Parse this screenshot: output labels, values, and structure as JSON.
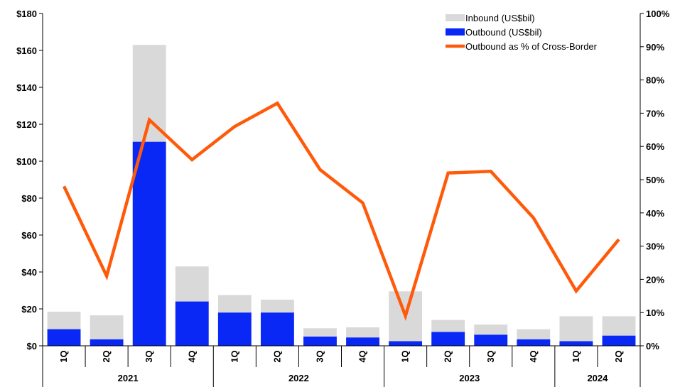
{
  "chart_data": {
    "type": "bar",
    "categories": [
      "1Q",
      "2Q",
      "3Q",
      "4Q",
      "1Q",
      "2Q",
      "3Q",
      "4Q",
      "1Q",
      "2Q",
      "3Q",
      "4Q",
      "1Q",
      "2Q"
    ],
    "groups": [
      {
        "label": "2021",
        "count": 4
      },
      {
        "label": "2022",
        "count": 4
      },
      {
        "label": "2023",
        "count": 4
      },
      {
        "label": "2024",
        "count": 2
      }
    ],
    "series": [
      {
        "name": "Inbound (US$bil)",
        "kind": "bar-total",
        "color": "#d9d9d9",
        "values": [
          18.5,
          16.5,
          163,
          43,
          27.5,
          25,
          9.5,
          10,
          29.5,
          14,
          11.5,
          9,
          16,
          16
        ]
      },
      {
        "name": "Outbound (US$bil)",
        "kind": "bar",
        "color": "#0a28f5",
        "values": [
          9,
          3.5,
          110.5,
          24,
          18,
          18,
          5,
          4.5,
          2.5,
          7.5,
          6,
          3.5,
          2.5,
          5.5
        ]
      },
      {
        "name": "Outbound as % of Cross-Border",
        "kind": "line",
        "color": "#ff5a0a",
        "axis": "right",
        "values": [
          48,
          21,
          68,
          56,
          66,
          73,
          53,
          43,
          9,
          52,
          52.5,
          38.5,
          16.5,
          32
        ]
      }
    ],
    "y_left": {
      "min": 0,
      "max": 180,
      "step": 20,
      "ticks": [
        "$0",
        "$20",
        "$40",
        "$60",
        "$80",
        "$100",
        "$120",
        "$140",
        "$160",
        "$180"
      ]
    },
    "y_right": {
      "min": 0,
      "max": 100,
      "step": 10,
      "ticks": [
        "0%",
        "10%",
        "20%",
        "30%",
        "40%",
        "50%",
        "60%",
        "70%",
        "80%",
        "90%",
        "100%"
      ]
    },
    "legend_position": "top-right",
    "grid": false,
    "title": "",
    "xlabel": "",
    "ylabel": ""
  }
}
